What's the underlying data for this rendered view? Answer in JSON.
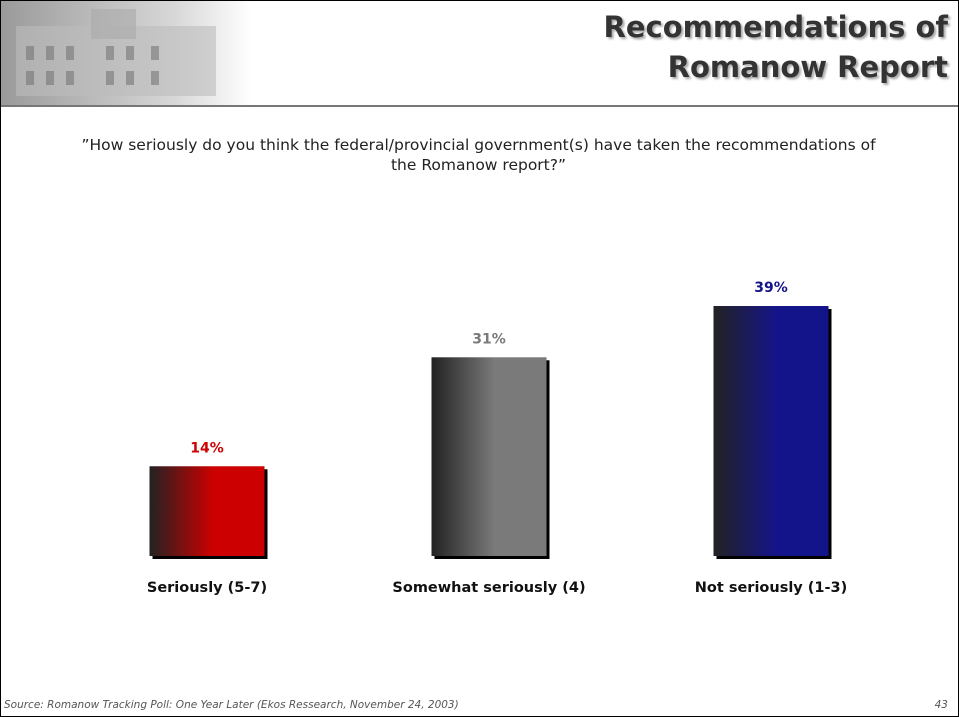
{
  "header": {
    "title_lines": [
      "Recommendations of",
      "Romanow Report"
    ]
  },
  "chart_data": {
    "type": "bar",
    "question": "”How seriously do you think the federal/provincial government(s) have taken the recommendations of the Romanow report?”",
    "categories": [
      "Seriously (5-7)",
      "Somewhat seriously (4)",
      "Not seriously (1-3)"
    ],
    "values": [
      14,
      31,
      39
    ],
    "value_labels": [
      "14%",
      "31%",
      "39%"
    ],
    "colors": [
      "#cc0000",
      "#7a7a7a",
      "#14148a"
    ]
  },
  "footer": {
    "source": "Source: Romanow Tracking Poll:  One Year Later (Ekos Ressearch, November 24, 2003)",
    "page": "43"
  }
}
